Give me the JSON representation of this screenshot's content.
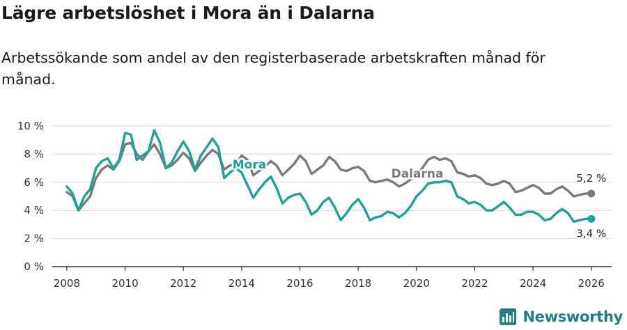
{
  "title": "Lägre arbetslöshet i Mora än i Dalarna",
  "subtitle": "Arbetssökande som andel av den registerbaserade arbetskraften månad för månad.",
  "brand": {
    "name": "Newsworthy",
    "icon": "newsworthy-logo-icon"
  },
  "colors": {
    "mora": "#1aa39a",
    "dalarna": "#7a7a7a",
    "grid": "#d9d9d9",
    "axis": "#333333"
  },
  "chart_data": {
    "type": "line",
    "title": "Lägre arbetslöshet i Mora än i Dalarna",
    "xlabel": "",
    "ylabel": "",
    "xlim": [
      2007.5,
      2026.7
    ],
    "ylim": [
      0,
      10
    ],
    "x_ticks": [
      2008,
      2010,
      2012,
      2014,
      2016,
      2018,
      2020,
      2022,
      2024,
      2026
    ],
    "y_ticks": [
      0,
      2,
      4,
      6,
      8,
      10
    ],
    "y_tick_labels": [
      "0 %",
      "2 %",
      "4 %",
      "6 %",
      "8 %",
      "10 %"
    ],
    "series": [
      {
        "name": "Dalarna",
        "label": "Dalarna",
        "end_label": "5,2 %",
        "points": [
          [
            2008.0,
            5.3
          ],
          [
            2008.2,
            5.0
          ],
          [
            2008.4,
            4.0
          ],
          [
            2008.6,
            4.5
          ],
          [
            2008.8,
            5.0
          ],
          [
            2009.0,
            6.3
          ],
          [
            2009.2,
            6.9
          ],
          [
            2009.4,
            7.2
          ],
          [
            2009.6,
            6.9
          ],
          [
            2009.8,
            7.5
          ],
          [
            2010.0,
            8.7
          ],
          [
            2010.2,
            8.8
          ],
          [
            2010.4,
            8.0
          ],
          [
            2010.6,
            7.6
          ],
          [
            2010.8,
            8.2
          ],
          [
            2011.0,
            8.7
          ],
          [
            2011.2,
            8.0
          ],
          [
            2011.4,
            7.0
          ],
          [
            2011.6,
            7.2
          ],
          [
            2011.8,
            7.6
          ],
          [
            2012.0,
            8.1
          ],
          [
            2012.2,
            7.7
          ],
          [
            2012.4,
            6.8
          ],
          [
            2012.6,
            7.4
          ],
          [
            2012.8,
            7.9
          ],
          [
            2013.0,
            8.3
          ],
          [
            2013.2,
            8.0
          ],
          [
            2013.4,
            6.9
          ],
          [
            2013.6,
            7.2
          ],
          [
            2013.8,
            7.3
          ],
          [
            2014.0,
            7.9
          ],
          [
            2014.2,
            7.6
          ],
          [
            2014.4,
            6.5
          ],
          [
            2014.6,
            6.8
          ],
          [
            2014.8,
            7.1
          ],
          [
            2015.0,
            7.5
          ],
          [
            2015.2,
            7.2
          ],
          [
            2015.4,
            6.5
          ],
          [
            2015.6,
            6.9
          ],
          [
            2015.8,
            7.3
          ],
          [
            2016.0,
            7.9
          ],
          [
            2016.2,
            7.5
          ],
          [
            2016.4,
            6.6
          ],
          [
            2016.6,
            6.9
          ],
          [
            2016.8,
            7.2
          ],
          [
            2017.0,
            7.8
          ],
          [
            2017.2,
            7.5
          ],
          [
            2017.4,
            6.9
          ],
          [
            2017.6,
            6.8
          ],
          [
            2017.8,
            7.0
          ],
          [
            2018.0,
            7.1
          ],
          [
            2018.2,
            6.8
          ],
          [
            2018.4,
            6.1
          ],
          [
            2018.6,
            6.0
          ],
          [
            2018.8,
            6.1
          ],
          [
            2019.0,
            6.2
          ],
          [
            2019.2,
            6.0
          ],
          [
            2019.4,
            5.7
          ],
          [
            2019.6,
            5.9
          ],
          [
            2019.8,
            6.2
          ],
          [
            2020.0,
            6.5
          ],
          [
            2020.2,
            7.0
          ],
          [
            2020.4,
            7.6
          ],
          [
            2020.6,
            7.8
          ],
          [
            2020.8,
            7.6
          ],
          [
            2021.0,
            7.7
          ],
          [
            2021.2,
            7.5
          ],
          [
            2021.4,
            6.7
          ],
          [
            2021.6,
            6.6
          ],
          [
            2021.8,
            6.4
          ],
          [
            2022.0,
            6.5
          ],
          [
            2022.2,
            6.3
          ],
          [
            2022.4,
            5.9
          ],
          [
            2022.6,
            5.8
          ],
          [
            2022.8,
            5.9
          ],
          [
            2023.0,
            6.1
          ],
          [
            2023.2,
            5.9
          ],
          [
            2023.4,
            5.3
          ],
          [
            2023.6,
            5.4
          ],
          [
            2023.8,
            5.6
          ],
          [
            2024.0,
            5.8
          ],
          [
            2024.2,
            5.6
          ],
          [
            2024.4,
            5.2
          ],
          [
            2024.6,
            5.2
          ],
          [
            2024.8,
            5.5
          ],
          [
            2025.0,
            5.7
          ],
          [
            2025.2,
            5.4
          ],
          [
            2025.4,
            5.0
          ],
          [
            2025.6,
            5.1
          ],
          [
            2025.8,
            5.2
          ],
          [
            2026.0,
            5.2
          ]
        ]
      },
      {
        "name": "Mora",
        "label": "Mora",
        "end_label": "3,4 %",
        "points": [
          [
            2008.0,
            5.7
          ],
          [
            2008.2,
            5.2
          ],
          [
            2008.4,
            4.0
          ],
          [
            2008.6,
            5.0
          ],
          [
            2008.8,
            5.5
          ],
          [
            2009.0,
            7.0
          ],
          [
            2009.2,
            7.5
          ],
          [
            2009.4,
            7.7
          ],
          [
            2009.6,
            7.0
          ],
          [
            2009.8,
            7.6
          ],
          [
            2010.0,
            9.5
          ],
          [
            2010.2,
            9.4
          ],
          [
            2010.4,
            7.6
          ],
          [
            2010.6,
            7.9
          ],
          [
            2010.8,
            8.2
          ],
          [
            2011.0,
            9.7
          ],
          [
            2011.2,
            8.8
          ],
          [
            2011.4,
            7.0
          ],
          [
            2011.6,
            7.4
          ],
          [
            2011.8,
            8.2
          ],
          [
            2012.0,
            8.9
          ],
          [
            2012.2,
            8.2
          ],
          [
            2012.4,
            6.9
          ],
          [
            2012.6,
            7.9
          ],
          [
            2012.8,
            8.5
          ],
          [
            2013.0,
            9.1
          ],
          [
            2013.2,
            8.5
          ],
          [
            2013.4,
            6.3
          ],
          [
            2013.6,
            6.7
          ],
          [
            2013.8,
            7.0
          ],
          [
            2014.0,
            6.7
          ],
          [
            2014.2,
            5.8
          ],
          [
            2014.4,
            4.9
          ],
          [
            2014.6,
            5.5
          ],
          [
            2014.8,
            6.0
          ],
          [
            2015.0,
            6.4
          ],
          [
            2015.2,
            5.6
          ],
          [
            2015.4,
            4.5
          ],
          [
            2015.6,
            4.9
          ],
          [
            2015.8,
            5.1
          ],
          [
            2016.0,
            5.2
          ],
          [
            2016.2,
            4.6
          ],
          [
            2016.4,
            3.7
          ],
          [
            2016.6,
            4.0
          ],
          [
            2016.8,
            4.6
          ],
          [
            2017.0,
            4.9
          ],
          [
            2017.2,
            4.2
          ],
          [
            2017.4,
            3.3
          ],
          [
            2017.6,
            3.8
          ],
          [
            2017.8,
            4.4
          ],
          [
            2018.0,
            4.8
          ],
          [
            2018.2,
            4.2
          ],
          [
            2018.4,
            3.3
          ],
          [
            2018.6,
            3.5
          ],
          [
            2018.8,
            3.6
          ],
          [
            2019.0,
            3.9
          ],
          [
            2019.2,
            3.8
          ],
          [
            2019.4,
            3.5
          ],
          [
            2019.6,
            3.8
          ],
          [
            2019.8,
            4.3
          ],
          [
            2020.0,
            5.0
          ],
          [
            2020.2,
            5.4
          ],
          [
            2020.4,
            5.9
          ],
          [
            2020.6,
            6.0
          ],
          [
            2020.8,
            6.0
          ],
          [
            2021.0,
            6.1
          ],
          [
            2021.2,
            6.0
          ],
          [
            2021.4,
            5.0
          ],
          [
            2021.6,
            4.8
          ],
          [
            2021.8,
            4.5
          ],
          [
            2022.0,
            4.6
          ],
          [
            2022.2,
            4.4
          ],
          [
            2022.4,
            4.0
          ],
          [
            2022.6,
            4.0
          ],
          [
            2022.8,
            4.3
          ],
          [
            2023.0,
            4.6
          ],
          [
            2023.2,
            4.2
          ],
          [
            2023.4,
            3.7
          ],
          [
            2023.6,
            3.7
          ],
          [
            2023.8,
            3.9
          ],
          [
            2024.0,
            3.9
          ],
          [
            2024.2,
            3.7
          ],
          [
            2024.4,
            3.3
          ],
          [
            2024.6,
            3.4
          ],
          [
            2024.8,
            3.8
          ],
          [
            2025.0,
            4.1
          ],
          [
            2025.2,
            3.8
          ],
          [
            2025.4,
            3.2
          ],
          [
            2025.6,
            3.3
          ],
          [
            2025.8,
            3.4
          ],
          [
            2026.0,
            3.4
          ]
        ]
      }
    ]
  }
}
